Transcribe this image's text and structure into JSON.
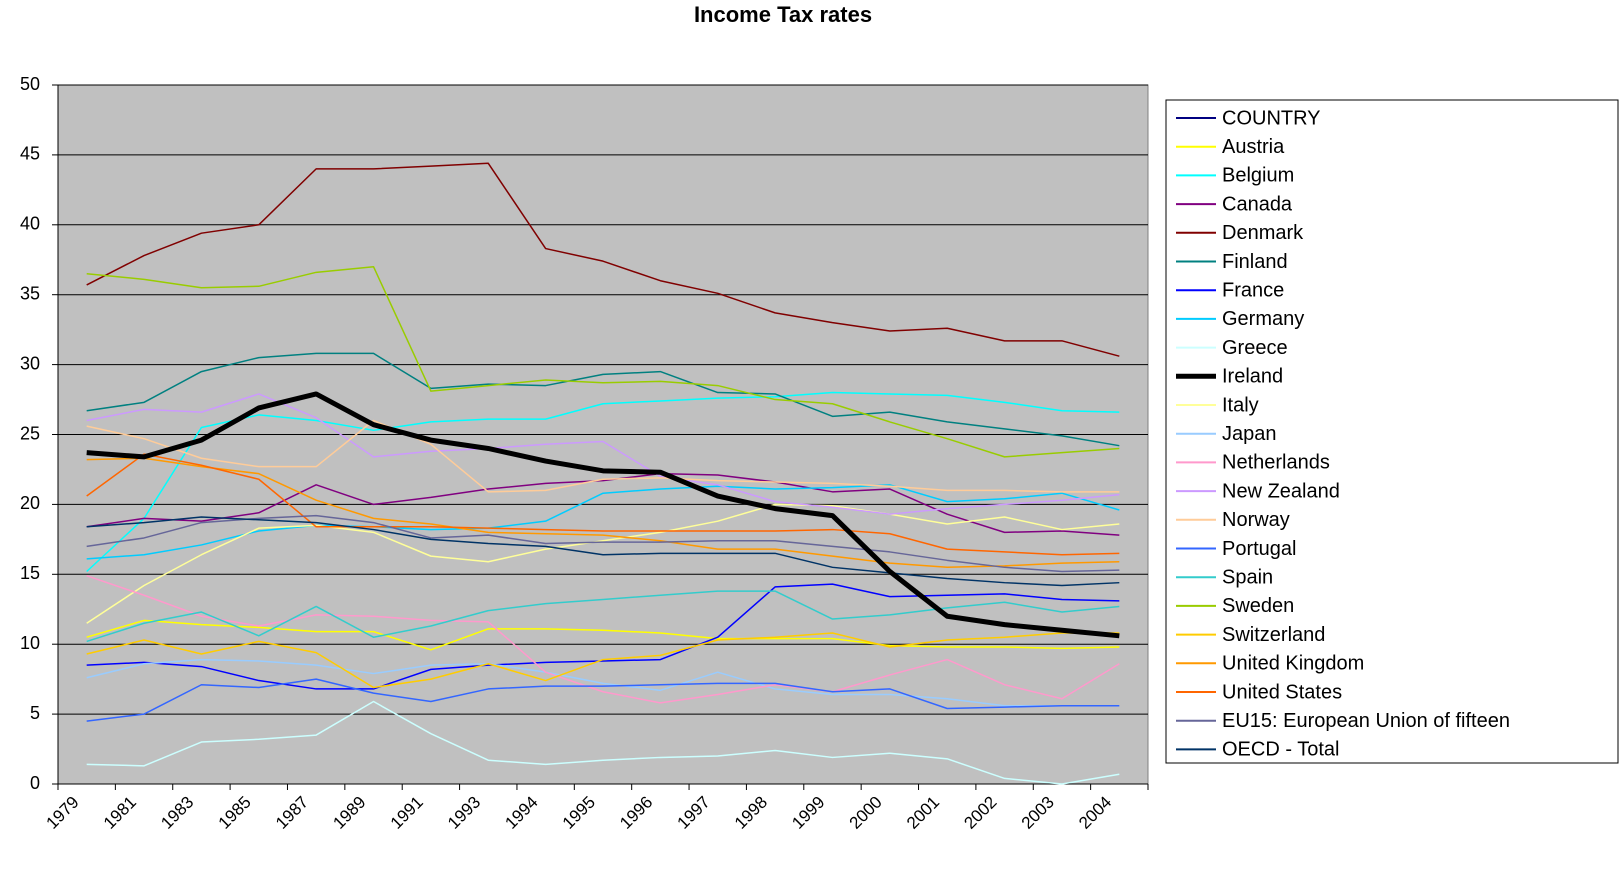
{
  "chart_data": {
    "type": "line",
    "title": "Income Tax rates",
    "categories": [
      "1979",
      "1981",
      "1983",
      "1985",
      "1987",
      "1989",
      "1991",
      "1993",
      "1994",
      "1995",
      "1996",
      "1997",
      "1998",
      "1999",
      "2000",
      "2001",
      "2002",
      "2003",
      "2004"
    ],
    "ylim": [
      0,
      50
    ],
    "yticks": [
      0,
      5,
      10,
      15,
      20,
      25,
      30,
      35,
      40,
      45,
      50
    ],
    "grid": true,
    "legend": "right",
    "series": [
      {
        "name": "COUNTRY",
        "color": "#000080",
        "values": [
          null,
          null,
          null,
          null,
          null,
          null,
          null,
          null,
          null,
          null,
          null,
          null,
          null,
          null,
          null,
          null,
          null,
          null,
          null
        ]
      },
      {
        "name": "Austria",
        "color": "#ffff00",
        "values": [
          10.5,
          11.7,
          11.4,
          11.2,
          10.9,
          10.9,
          9.6,
          11.1,
          11.1,
          11.0,
          10.8,
          10.4,
          10.4,
          10.4,
          9.9,
          9.8,
          9.8,
          9.7,
          9.8
        ]
      },
      {
        "name": "Belgium",
        "color": "#00ffff",
        "values": [
          15.2,
          19.0,
          25.5,
          26.4,
          26.0,
          25.3,
          25.9,
          26.1,
          26.1,
          27.2,
          27.4,
          27.6,
          27.7,
          28.0,
          27.9,
          27.8,
          27.3,
          26.7,
          26.6
        ]
      },
      {
        "name": "Canada",
        "color": "#800080",
        "values": [
          18.4,
          19.0,
          18.8,
          19.4,
          21.4,
          20.0,
          20.5,
          21.1,
          21.5,
          21.7,
          22.2,
          22.1,
          21.6,
          20.9,
          21.1,
          19.3,
          18.0,
          18.1,
          17.8
        ]
      },
      {
        "name": "Denmark",
        "color": "#800000",
        "values": [
          35.7,
          37.8,
          39.4,
          40.0,
          44.0,
          44.0,
          44.2,
          44.4,
          38.3,
          37.4,
          36.0,
          35.1,
          33.7,
          33.0,
          32.4,
          32.6,
          31.7,
          31.7,
          30.6
        ]
      },
      {
        "name": "Finland",
        "color": "#008080",
        "values": [
          26.7,
          27.3,
          29.5,
          30.5,
          30.8,
          30.8,
          28.3,
          28.6,
          28.5,
          29.3,
          29.5,
          28.0,
          27.9,
          26.3,
          26.6,
          25.9,
          25.4,
          24.9,
          24.2
        ]
      },
      {
        "name": "France",
        "color": "#0000ff",
        "values": [
          8.5,
          8.7,
          8.4,
          7.4,
          6.8,
          6.8,
          8.2,
          8.5,
          8.7,
          8.8,
          8.9,
          10.5,
          14.1,
          14.3,
          13.4,
          13.5,
          13.6,
          13.2,
          13.1
        ]
      },
      {
        "name": "Germany",
        "color": "#00ccff",
        "values": [
          16.1,
          16.4,
          17.1,
          18.1,
          18.5,
          18.4,
          18.2,
          18.3,
          18.8,
          20.8,
          21.1,
          21.3,
          21.1,
          21.2,
          21.4,
          20.2,
          20.4,
          20.8,
          19.6
        ]
      },
      {
        "name": "Greece",
        "color": "#ccffff",
        "values": [
          1.4,
          1.3,
          3.0,
          3.2,
          3.5,
          5.9,
          3.6,
          1.7,
          1.4,
          1.7,
          1.9,
          2.0,
          2.4,
          1.9,
          2.2,
          1.8,
          0.4,
          0.0,
          0.7
        ]
      },
      {
        "name": "Ireland",
        "color": "#000000",
        "width": 5,
        "values": [
          23.7,
          23.4,
          24.6,
          26.9,
          27.9,
          25.7,
          24.6,
          24.0,
          23.1,
          22.4,
          22.3,
          20.6,
          19.7,
          19.2,
          15.2,
          12.0,
          11.4,
          11.0,
          10.6
        ]
      },
      {
        "name": "Italy",
        "color": "#ffff99",
        "values": [
          11.5,
          14.2,
          16.4,
          18.3,
          18.5,
          18.0,
          16.3,
          15.9,
          16.8,
          17.4,
          18.0,
          18.8,
          20.0,
          19.9,
          19.3,
          18.6,
          19.1,
          18.2,
          18.6
        ]
      },
      {
        "name": "Japan",
        "color": "#99ccff",
        "values": [
          7.6,
          8.6,
          8.9,
          8.8,
          8.5,
          7.9,
          8.5,
          8.6,
          8.0,
          7.2,
          6.7,
          8.0,
          6.8,
          6.4,
          6.4,
          6.1,
          5.6,
          5.6,
          5.6
        ]
      },
      {
        "name": "Netherlands",
        "color": "#ff99cc",
        "values": [
          14.9,
          13.5,
          12.0,
          11.3,
          12.1,
          12.0,
          11.7,
          11.6,
          8.0,
          6.6,
          5.8,
          6.4,
          7.1,
          6.6,
          7.8,
          8.9,
          7.1,
          6.1,
          8.6
        ]
      },
      {
        "name": "New Zealand",
        "color": "#cc99ff",
        "values": [
          26.0,
          26.8,
          26.6,
          27.9,
          26.2,
          23.4,
          23.8,
          24.0,
          24.3,
          24.5,
          22.0,
          21.4,
          20.2,
          19.8,
          19.3,
          19.7,
          20.0,
          20.3,
          20.7
        ]
      },
      {
        "name": "Norway",
        "color": "#ffcc99",
        "values": [
          25.6,
          24.7,
          23.3,
          22.7,
          22.7,
          26.0,
          24.3,
          20.9,
          21.0,
          21.8,
          21.9,
          21.7,
          21.6,
          21.5,
          21.3,
          21.0,
          21.0,
          20.9,
          20.9
        ]
      },
      {
        "name": "Portugal",
        "color": "#3366ff",
        "values": [
          4.5,
          5.0,
          7.1,
          6.9,
          7.5,
          6.5,
          5.9,
          6.8,
          7.0,
          7.0,
          7.1,
          7.2,
          7.2,
          6.6,
          6.8,
          5.4,
          5.5,
          5.6,
          5.6
        ]
      },
      {
        "name": "Spain",
        "color": "#33cccc",
        "values": [
          10.2,
          11.5,
          12.3,
          10.6,
          12.7,
          10.5,
          11.3,
          12.4,
          12.9,
          13.2,
          13.5,
          13.8,
          13.8,
          11.8,
          12.1,
          12.6,
          13.0,
          12.3,
          12.7
        ]
      },
      {
        "name": "Sweden",
        "color": "#99cc00",
        "values": [
          36.5,
          36.1,
          35.5,
          35.6,
          36.6,
          37.0,
          28.1,
          28.5,
          28.9,
          28.7,
          28.8,
          28.5,
          27.5,
          27.2,
          25.9,
          24.7,
          23.4,
          23.7,
          24.0
        ]
      },
      {
        "name": "Switzerland",
        "color": "#ffcc00",
        "values": [
          9.3,
          10.3,
          9.3,
          10.2,
          9.4,
          6.9,
          7.5,
          8.6,
          7.4,
          8.9,
          9.2,
          10.3,
          10.5,
          10.8,
          9.8,
          10.3,
          10.5,
          10.8,
          10.8
        ]
      },
      {
        "name": "United Kingdom",
        "color": "#ff9900",
        "values": [
          23.2,
          23.3,
          22.7,
          22.2,
          20.3,
          19.0,
          18.6,
          18.0,
          17.9,
          17.8,
          17.4,
          16.8,
          16.8,
          16.3,
          15.8,
          15.5,
          15.6,
          15.8,
          15.9
        ]
      },
      {
        "name": "United States",
        "color": "#ff6600",
        "values": [
          20.6,
          23.6,
          22.8,
          21.8,
          18.4,
          18.4,
          18.4,
          18.3,
          18.2,
          18.1,
          18.1,
          18.1,
          18.1,
          18.2,
          17.9,
          16.8,
          16.6,
          16.4,
          16.5
        ]
      },
      {
        "name": "EU15: European Union of fifteen",
        "color": "#666699",
        "values": [
          17.0,
          17.6,
          18.7,
          19.0,
          19.2,
          18.7,
          17.6,
          17.8,
          17.2,
          17.3,
          17.3,
          17.4,
          17.4,
          17.0,
          16.6,
          16.0,
          15.5,
          15.2,
          15.3
        ]
      },
      {
        "name": "OECD - Total",
        "color": "#003366",
        "values": [
          18.4,
          18.7,
          19.1,
          18.9,
          18.7,
          18.2,
          17.5,
          17.2,
          17.0,
          16.4,
          16.5,
          16.5,
          16.5,
          15.5,
          15.1,
          14.7,
          14.4,
          14.2,
          14.4
        ]
      }
    ]
  }
}
